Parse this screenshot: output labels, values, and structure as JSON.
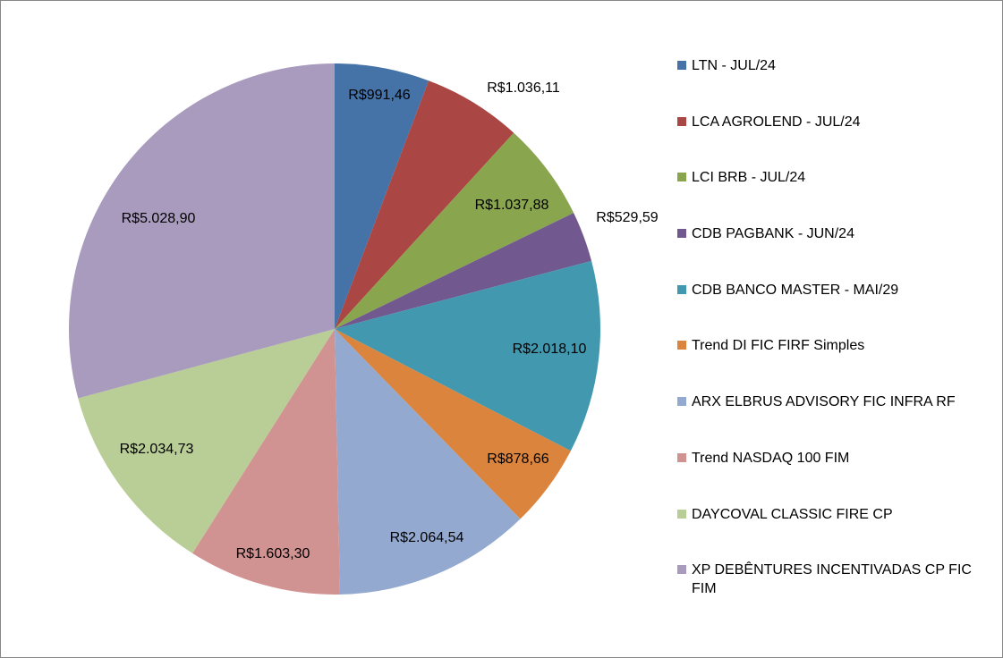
{
  "chart_data": {
    "type": "pie",
    "title": "",
    "categories": [
      "LTN - JUL/24",
      "LCA AGROLEND - JUL/24",
      "LCI BRB - JUL/24",
      "CDB PAGBANK - JUN/24",
      "CDB BANCO MASTER - MAI/29",
      "Trend DI FIC FIRF Simples",
      "ARX ELBRUS ADVISORY FIC INFRA RF",
      "Trend NASDAQ 100 FIM",
      "DAYCOVAL CLASSIC FIRE CP",
      "XP DEBÊNTURES INCENTIVADAS CP FIC FIM"
    ],
    "values": [
      991.46,
      1036.11,
      1037.88,
      529.59,
      2018.1,
      878.66,
      2064.54,
      1603.3,
      2034.73,
      5028.9
    ],
    "data_labels": [
      "R$991,46",
      "R$1.036,11",
      "R$1.037,88",
      "R$529,59",
      "R$2.018,10",
      "R$878,66",
      "R$2.064,54",
      "R$1.603,30",
      "R$2.034,73",
      "R$5.028,90"
    ],
    "colors": [
      "#4572A7",
      "#AA4643",
      "#89A54E",
      "#71588F",
      "#4198AF",
      "#DB843D",
      "#93A9CF",
      "#D19392",
      "#B9CD96",
      "#A99BBD"
    ],
    "start_angle": "12 o'clock",
    "direction": "clockwise",
    "legend_position": "right"
  }
}
